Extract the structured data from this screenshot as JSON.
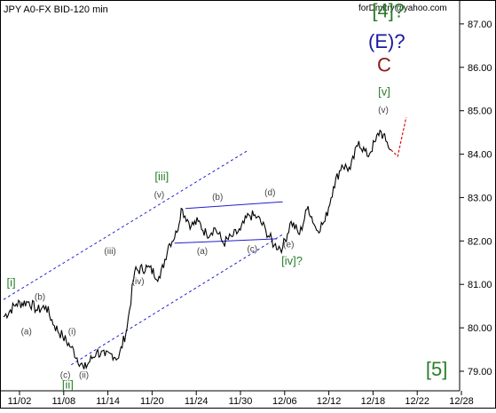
{
  "header": {
    "symbol_title": "JPY A0-FX BID-120 min",
    "author": "forDmitry@yahoo.com"
  },
  "chart_data": {
    "type": "line",
    "title": "JPY A0-FX BID-120 min",
    "xlabel": "",
    "ylabel": "",
    "x_ticks": [
      "11/02",
      "11/08",
      "11/14",
      "11/20",
      "11/24",
      "11/30",
      "12/06",
      "12/12",
      "12/18",
      "12/22",
      "12/28"
    ],
    "y_ticks": [
      79.0,
      80.0,
      81.0,
      82.0,
      83.0,
      84.0,
      85.0,
      86.0,
      87.0
    ],
    "ylim": [
      78.55,
      87.55
    ],
    "grid": false,
    "legend": "none",
    "colors": {
      "price": "#000000",
      "channel": "#1f1fd0",
      "projection": "#e01010",
      "green_label": "#2a7d2a",
      "blue_label": "#1a1aa0",
      "dark_red": "#8b1a1a",
      "grey_label": "#444444"
    },
    "series": [
      {
        "key": "price",
        "x": [
          0,
          1.5,
          3,
          4,
          5,
          6,
          7,
          8,
          9.5,
          11,
          12,
          12.8,
          13.6,
          14.6,
          15.5,
          17,
          18.5,
          19.5,
          20.5,
          21,
          22.2,
          23,
          24,
          25,
          26,
          27,
          28,
          29,
          30,
          31,
          32,
          33,
          34,
          35,
          36,
          37,
          38,
          39,
          40,
          41,
          42,
          43,
          44,
          44.5,
          45.2,
          45.8
        ],
        "y": [
          80.25,
          80.55,
          80.6,
          80.4,
          80.5,
          80.05,
          79.8,
          79.55,
          79.05,
          79.45,
          79.35,
          79.4,
          79.3,
          80.0,
          81.3,
          81.4,
          81.15,
          81.9,
          82.2,
          82.75,
          82.35,
          82.45,
          82.15,
          82.3,
          81.95,
          82.1,
          82.25,
          82.6,
          82.55,
          82.25,
          81.9,
          81.85,
          82.45,
          82.15,
          82.8,
          82.25,
          82.45,
          83.25,
          83.75,
          83.65,
          84.3,
          83.95,
          84.3,
          84.55,
          84.3,
          84.1
        ]
      }
    ],
    "projection": {
      "x": [
        45.8,
        46.6,
        47.6
      ],
      "y": [
        84.1,
        83.95,
        84.85
      ]
    },
    "channels": [
      {
        "x": [
          0,
          29
        ],
        "y": [
          80.65,
          84.1
        ]
      },
      {
        "x": [
          8,
          33
        ],
        "y": [
          79.15,
          82.15
        ]
      },
      {
        "x": [
          21.5,
          33
        ],
        "y": [
          82.75,
          82.9
        ]
      },
      {
        "x": [
          20.2,
          32.3
        ],
        "y": [
          81.95,
          82.05
        ]
      }
    ],
    "annotations": [
      {
        "text": "[i]",
        "x": 0.9,
        "y": 80.95,
        "style": "green"
      },
      {
        "text": "(b)",
        "x": 4.3,
        "y": 80.65,
        "style": "grey"
      },
      {
        "text": "(a)",
        "x": 2.7,
        "y": 79.85,
        "style": "grey"
      },
      {
        "text": "(i)",
        "x": 8.1,
        "y": 79.85,
        "style": "grey"
      },
      {
        "text": "(c)",
        "x": 7.3,
        "y": 78.85,
        "style": "grey"
      },
      {
        "text": "(ii)",
        "x": 9.5,
        "y": 78.85,
        "style": "grey"
      },
      {
        "text": "[ii]",
        "x": 7.6,
        "y": 78.6,
        "style": "green"
      },
      {
        "text": "(iii)",
        "x": 12.6,
        "y": 81.7,
        "style": "grey"
      },
      {
        "text": "(iv)",
        "x": 15.9,
        "y": 81.0,
        "style": "grey"
      },
      {
        "text": "(v)",
        "x": 18.4,
        "y": 83.0,
        "style": "grey"
      },
      {
        "text": "[iii]",
        "x": 18.7,
        "y": 83.4,
        "style": "green"
      },
      {
        "text": "(b)",
        "x": 25.3,
        "y": 82.95,
        "style": "grey"
      },
      {
        "text": "(d)",
        "x": 31.5,
        "y": 83.05,
        "style": "grey"
      },
      {
        "text": "(a)",
        "x": 23.5,
        "y": 81.7,
        "style": "grey"
      },
      {
        "text": "(c)",
        "x": 29.4,
        "y": 81.75,
        "style": "grey"
      },
      {
        "text": "(e)",
        "x": 33.7,
        "y": 81.85,
        "style": "grey"
      },
      {
        "text": "[iv]?",
        "x": 34.1,
        "y": 81.45,
        "style": "green"
      },
      {
        "text": "(v)",
        "x": 44.9,
        "y": 84.95,
        "style": "grey"
      },
      {
        "text": "[v]",
        "x": 45.0,
        "y": 85.35,
        "style": "green"
      },
      {
        "text": "C",
        "x": 45.0,
        "y": 85.9,
        "style": "dark_red"
      },
      {
        "text": "(E)?",
        "x": 45.3,
        "y": 86.45,
        "style": "blue"
      },
      {
        "text": "[4]?",
        "x": 45.5,
        "y": 87.15,
        "style": "green_big"
      },
      {
        "text": "[5]",
        "x": 51.2,
        "y": 78.9,
        "style": "green_big"
      }
    ]
  }
}
